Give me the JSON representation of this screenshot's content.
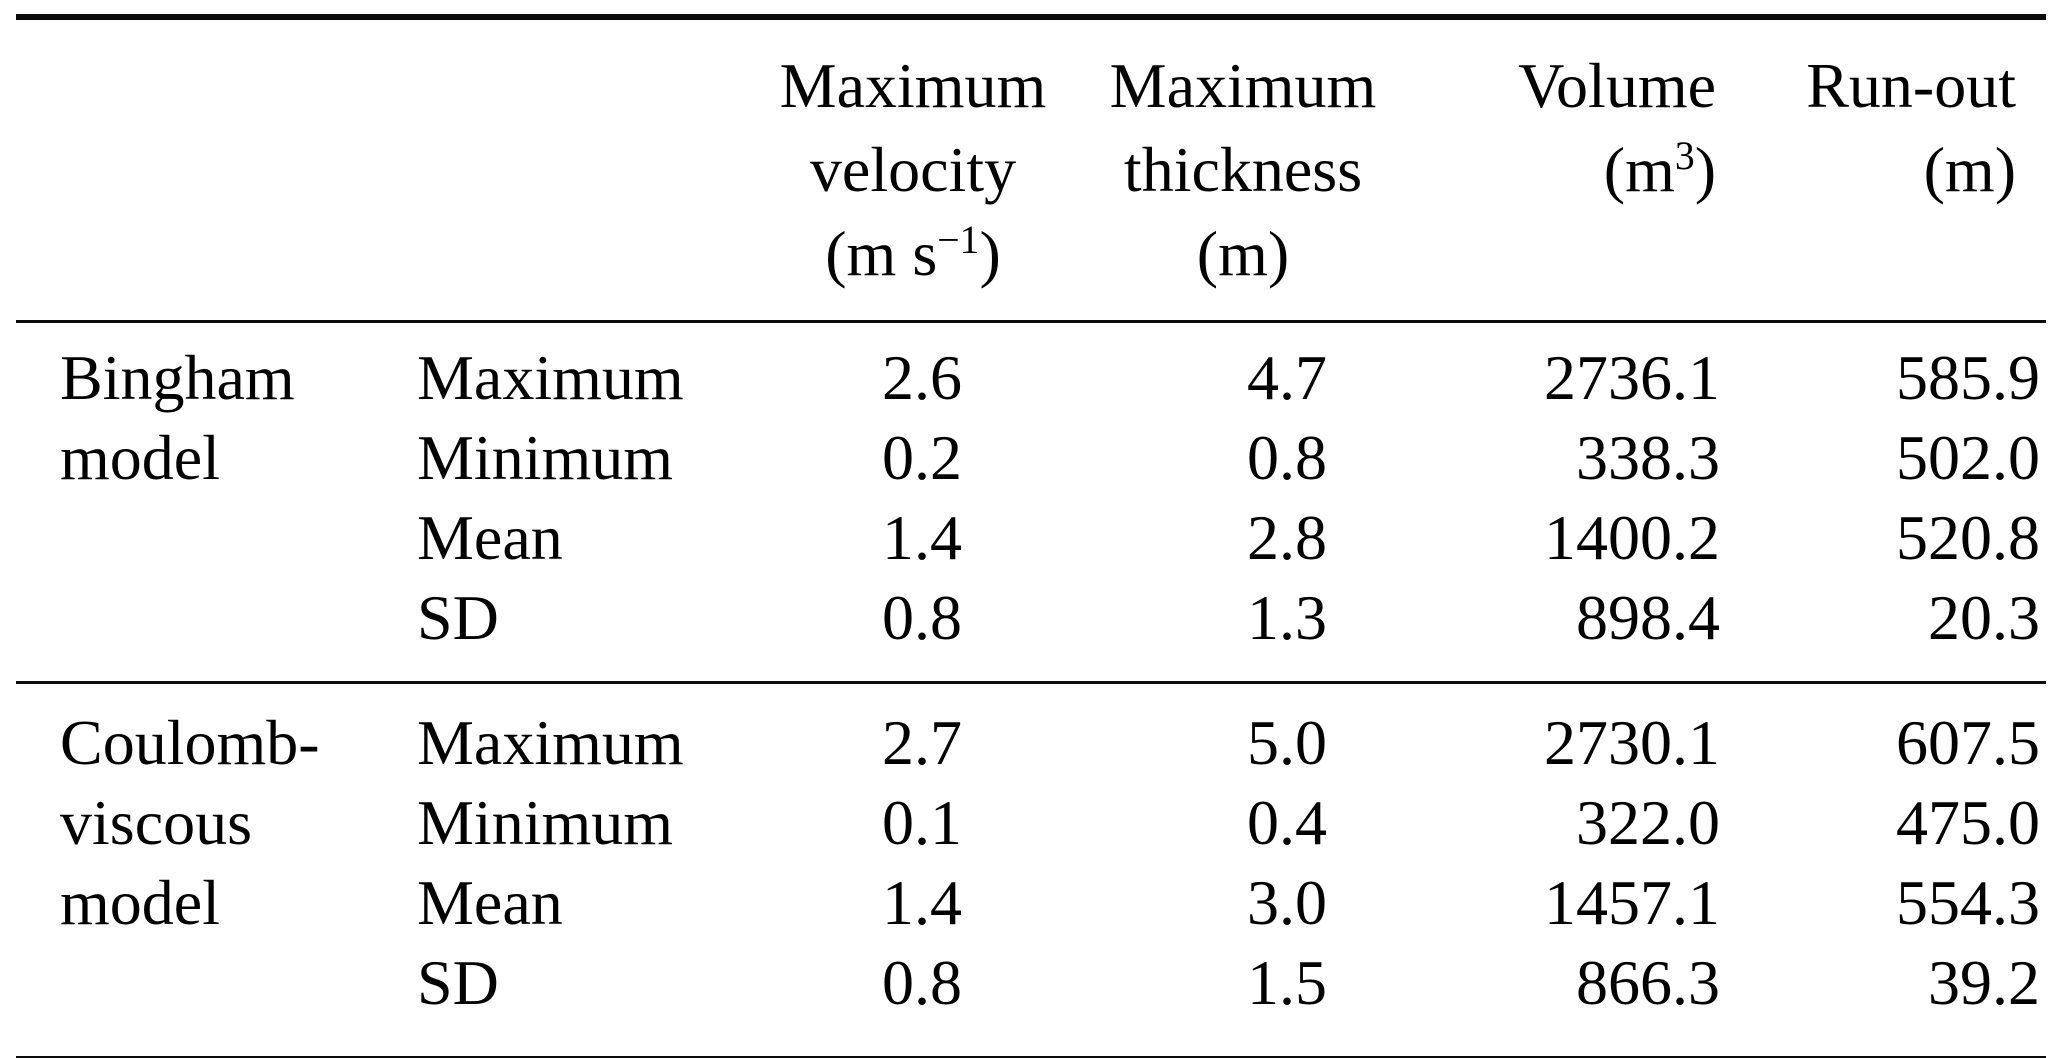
{
  "page": {
    "background_color": "#ffffff",
    "text_color": "#000000",
    "rule_color": "#0c0c0c"
  },
  "table": {
    "headers": {
      "velocity": {
        "line1": "Maximum",
        "line2": "velocity",
        "unit_pre": "(m s",
        "unit_sup": "−1",
        "unit_post": ")"
      },
      "thickness": {
        "line1": "Maximum",
        "line2": "thickness",
        "unit": "(m)"
      },
      "volume": {
        "line1": "Volume",
        "unit_pre": "(m",
        "unit_sup": "3",
        "unit_post": ")"
      },
      "runout": {
        "line1": "Run-out",
        "unit": "(m)"
      }
    },
    "rows": [
      {
        "model": "Bingham",
        "stat": "Maximum",
        "velocity": "2.6",
        "thickness": "4.7",
        "volume": "2736.1",
        "runout": "585.9"
      },
      {
        "model": "model",
        "stat": "Minimum",
        "velocity": "0.2",
        "thickness": "0.8",
        "volume": "338.3",
        "runout": "502.0"
      },
      {
        "model": "",
        "stat": "Mean",
        "velocity": "1.4",
        "thickness": "2.8",
        "volume": "1400.2",
        "runout": "520.8"
      },
      {
        "model": "",
        "stat": "SD",
        "velocity": "0.8",
        "thickness": "1.3",
        "volume": "898.4",
        "runout": "20.3"
      },
      {
        "model": "Coulomb-",
        "stat": "Maximum",
        "velocity": "2.7",
        "thickness": "5.0",
        "volume": "2730.1",
        "runout": "607.5"
      },
      {
        "model": "viscous",
        "stat": "Minimum",
        "velocity": "0.1",
        "thickness": "0.4",
        "volume": "322.0",
        "runout": "475.0"
      },
      {
        "model": "model",
        "stat": "Mean",
        "velocity": "1.4",
        "thickness": "3.0",
        "volume": "1457.1",
        "runout": "554.3"
      },
      {
        "model": "",
        "stat": "SD",
        "velocity": "0.8",
        "thickness": "1.5",
        "volume": "866.3",
        "runout": "39.2"
      }
    ]
  }
}
